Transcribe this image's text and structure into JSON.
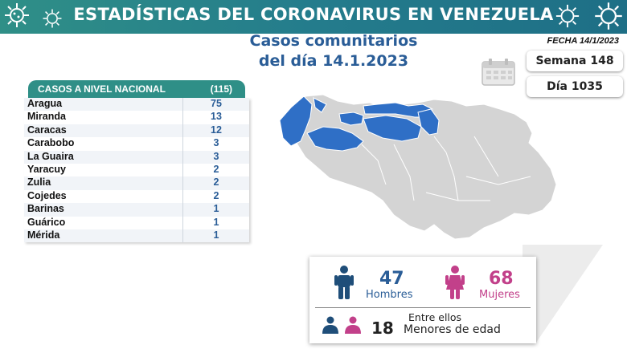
{
  "header": {
    "title": "ESTADÍSTICAS DEL CORONAVIRUS EN VENEZUELA",
    "date": "FECHA 14/1/2023"
  },
  "subtitle": {
    "line1": "Casos comunitarios",
    "line2": "del día 14.1.2023"
  },
  "counters": {
    "week": "Semana 148",
    "day": "Día 1035"
  },
  "table": {
    "title": "CASOS A NIVEL NACIONAL",
    "total": "(115)",
    "rows": [
      {
        "state": "Aragua",
        "cases": "75"
      },
      {
        "state": "Miranda",
        "cases": "13"
      },
      {
        "state": "Caracas",
        "cases": "12"
      },
      {
        "state": "Carabobo",
        "cases": "3"
      },
      {
        "state": "La Guaira",
        "cases": "3"
      },
      {
        "state": "Yaracuy",
        "cases": "2"
      },
      {
        "state": "Zulia",
        "cases": "2"
      },
      {
        "state": "Cojedes",
        "cases": "2"
      },
      {
        "state": "Barinas",
        "cases": "1"
      },
      {
        "state": "Guárico",
        "cases": "1"
      },
      {
        "state": "Mérida",
        "cases": "1"
      }
    ]
  },
  "gender": {
    "men_count": "47",
    "men_label": "Hombres",
    "women_count": "68",
    "women_label": "Mujeres",
    "minors_prefix": "Entre ellos",
    "minors_count": "18",
    "minors_label": "Menores de edad"
  },
  "colors": {
    "header": "#2f8f87",
    "accent_blue": "#2a5d97",
    "men": "#1f4e79",
    "women": "#c2408a",
    "map_highlight": "#2f6fc6",
    "map_base": "#d4d4d4"
  }
}
